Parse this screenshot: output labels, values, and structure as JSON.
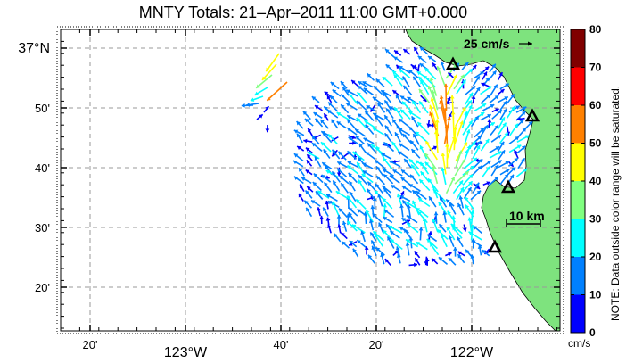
{
  "title": "MNTY Totals: 21–Apr–2011 11:00 GMT+0.000",
  "map": {
    "x_ticks": [
      {
        "label": "20'",
        "minor": true
      },
      {
        "label": "123°W",
        "minor": false
      },
      {
        "label": "40'",
        "minor": true
      },
      {
        "label": "20'",
        "minor": true
      },
      {
        "label": "122°W",
        "minor": false
      }
    ],
    "y_ticks": [
      {
        "label": "37°N",
        "minor": false
      },
      {
        "label": "50'",
        "minor": true
      },
      {
        "label": "40'",
        "minor": true
      },
      {
        "label": "30'",
        "minor": true
      },
      {
        "label": "20'",
        "minor": true
      }
    ],
    "grid": true,
    "land_color": "#7ee37e",
    "water_color": "#ffffff",
    "reference_arrow_label": "25 cm/s",
    "scale_bar_label": "10 km",
    "sites": 5,
    "site_marker": "triangle"
  },
  "colorbar": {
    "ticks": [
      "0",
      "10",
      "20",
      "30",
      "40",
      "50",
      "60",
      "70",
      "80"
    ],
    "colors": [
      "#0000ff",
      "#0080ff",
      "#00ffff",
      "#80ff80",
      "#ffff00",
      "#ff8000",
      "#ff0000",
      "#800000"
    ],
    "unit": "cm/s",
    "note": "NOTE: Data outside color range will be saturated."
  }
}
